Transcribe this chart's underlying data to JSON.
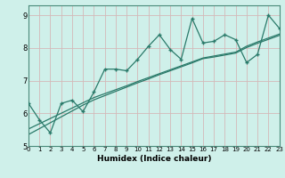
{
  "xlabel": "Humidex (Indice chaleur)",
  "x": [
    0,
    1,
    2,
    3,
    4,
    5,
    6,
    7,
    8,
    9,
    10,
    11,
    12,
    13,
    14,
    15,
    16,
    17,
    18,
    19,
    20,
    21,
    22,
    23
  ],
  "y_main": [
    6.3,
    5.8,
    5.4,
    6.3,
    6.4,
    6.05,
    6.65,
    7.35,
    7.35,
    7.3,
    7.65,
    8.05,
    8.4,
    7.95,
    7.65,
    8.9,
    8.15,
    8.2,
    8.4,
    8.25,
    7.55,
    7.8,
    9.0,
    8.6
  ],
  "y_line1": [
    5.52,
    5.68,
    5.84,
    6.0,
    6.16,
    6.32,
    6.48,
    6.6,
    6.72,
    6.84,
    6.97,
    7.09,
    7.21,
    7.33,
    7.45,
    7.57,
    7.69,
    7.75,
    7.81,
    7.87,
    8.05,
    8.18,
    8.3,
    8.42
  ],
  "y_line2": [
    5.35,
    5.53,
    5.71,
    5.89,
    6.07,
    6.25,
    6.41,
    6.54,
    6.67,
    6.8,
    6.93,
    7.05,
    7.18,
    7.3,
    7.42,
    7.54,
    7.67,
    7.72,
    7.78,
    7.84,
    8.01,
    8.14,
    8.26,
    8.38
  ],
  "line_color": "#2a7a6a",
  "bg_color": "#cff0ea",
  "grid_color": "#b8dcd6",
  "xlim": [
    0,
    23
  ],
  "ylim": [
    5.0,
    9.3
  ],
  "yticks": [
    5,
    6,
    7,
    8,
    9
  ],
  "xticks": [
    0,
    1,
    2,
    3,
    4,
    5,
    6,
    7,
    8,
    9,
    10,
    11,
    12,
    13,
    14,
    15,
    16,
    17,
    18,
    19,
    20,
    21,
    22,
    23
  ]
}
